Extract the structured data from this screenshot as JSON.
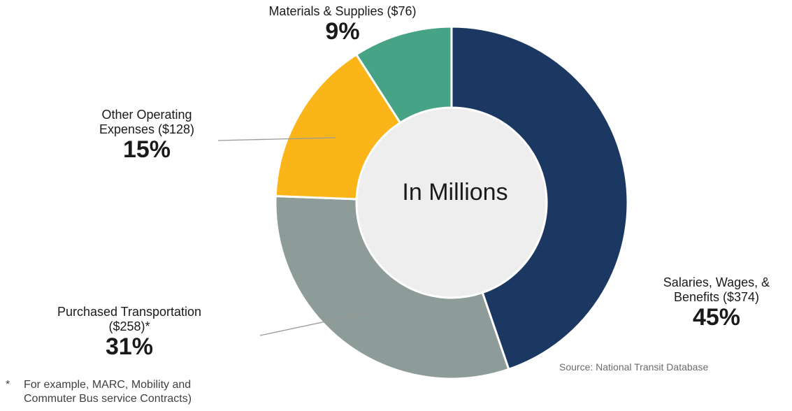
{
  "chart_data": {
    "type": "donut",
    "center_label": "In Millions",
    "slices": [
      {
        "label": "Salaries, Wages, & Benefits ($374)",
        "amount": 374,
        "percent": "45%",
        "color": "#1b3862"
      },
      {
        "label": "Purchased Transportation ($258)*",
        "amount": 258,
        "percent": "31%",
        "color": "#8d9c99"
      },
      {
        "label": "Other Operating Expenses ($128)",
        "amount": 128,
        "percent": "15%",
        "color": "#fbb519"
      },
      {
        "label": "Materials & Supplies ($76)",
        "amount": 76,
        "percent": "9%",
        "color": "#47a386"
      }
    ]
  },
  "labels": {
    "salaries_l1": "Salaries, Wages, &",
    "salaries_l2": "Benefits ($374)",
    "salaries_pct": "45%",
    "purchased_l1": "Purchased Transportation",
    "purchased_l2": "($258)*",
    "purchased_pct": "31%",
    "other_l1": "Other Operating",
    "other_l2": "Expenses ($128)",
    "other_pct": "15%",
    "materials_l1": "Materials & Supplies ($76)",
    "materials_pct": "9%"
  },
  "source": "Source: National Transit Database",
  "footnote": {
    "mark": "*",
    "line1": "For example, MARC, Mobility and",
    "line2": "Commuter Bus service Contracts)"
  }
}
